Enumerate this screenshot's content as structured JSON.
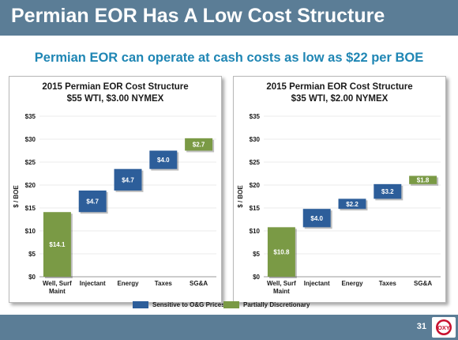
{
  "header": {
    "title": "Permian EOR Has A Low Cost Structure"
  },
  "subtitle": "Permian EOR can operate at cash costs as low as $22 per BOE",
  "colors": {
    "header_bg": "#5b7d96",
    "accent_text": "#1f86b4",
    "blue_bar": "#2d5e9a",
    "green_bar": "#7a9a45"
  },
  "legend": [
    {
      "label": "Sensitive to O&G Prices",
      "color": "#2d5e9a"
    },
    {
      "label": "Partially Discretionary",
      "color": "#7a9a45"
    }
  ],
  "footer": {
    "page_number": "31",
    "logo_text": "OXY"
  },
  "chart_data": [
    {
      "type": "bar",
      "subtype": "waterfall",
      "title": "2015 Permian EOR Cost Structure",
      "subtitle": "$55 WTI, $3.00 NYMEX",
      "ylabel": "$ / BOE",
      "ylim": [
        0,
        35
      ],
      "yticks": [
        "$0",
        "$5",
        "$10",
        "$15",
        "$20",
        "$25",
        "$30",
        "$35"
      ],
      "categories": [
        "Well, Surf Maint",
        "Injectant",
        "Energy",
        "Taxes",
        "SG&A"
      ],
      "values": [
        14.1,
        4.7,
        4.7,
        4.0,
        2.7
      ],
      "bases": [
        0,
        14.1,
        18.8,
        23.5,
        27.5
      ],
      "labels": [
        "$14.1",
        "$4.7",
        "$4.7",
        "$4.0",
        "$2.7"
      ],
      "groups": [
        "discretionary",
        "sensitive",
        "sensitive",
        "sensitive",
        "discretionary"
      ]
    },
    {
      "type": "bar",
      "subtype": "waterfall",
      "title": "2015 Permian EOR Cost Structure",
      "subtitle": "$35 WTI, $2.00 NYMEX",
      "ylabel": "$ / BOE",
      "ylim": [
        0,
        35
      ],
      "yticks": [
        "$0",
        "$5",
        "$10",
        "$15",
        "$20",
        "$25",
        "$30",
        "$35"
      ],
      "categories": [
        "Well, Surf Maint",
        "Injectant",
        "Energy",
        "Taxes",
        "SG&A"
      ],
      "values": [
        10.8,
        4.0,
        2.2,
        3.2,
        1.8
      ],
      "bases": [
        0,
        10.8,
        14.8,
        17.0,
        20.2
      ],
      "labels": [
        "$10.8",
        "$4.0",
        "$2.2",
        "$3.2",
        "$1.8"
      ],
      "groups": [
        "discretionary",
        "sensitive",
        "sensitive",
        "sensitive",
        "discretionary"
      ]
    }
  ]
}
